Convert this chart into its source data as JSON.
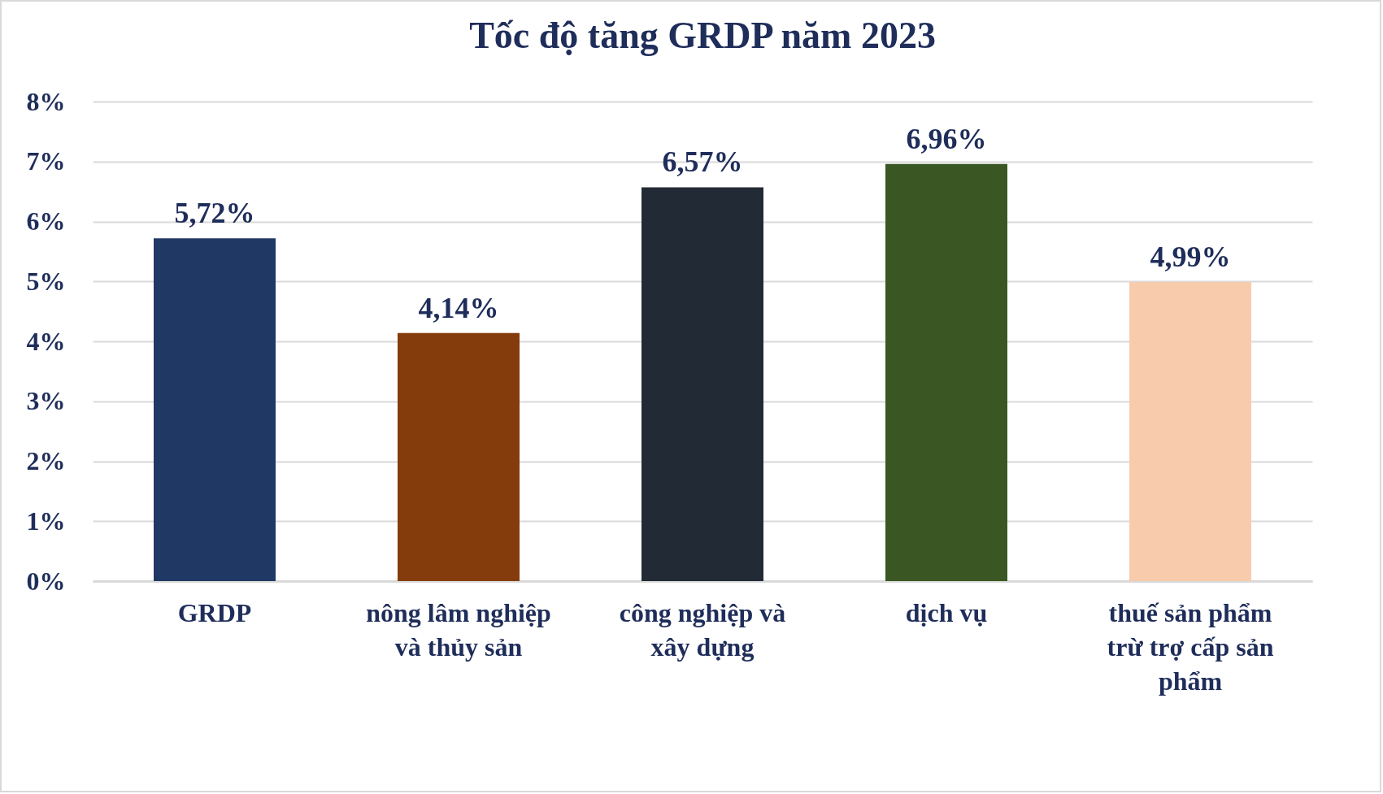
{
  "chart_data": {
    "type": "bar",
    "title": "Tốc độ tăng GRDP năm 2023",
    "categories": [
      "GRDP",
      "nông lâm nghiệp và thủy sản",
      "công nghiệp và xây dựng",
      "dịch vụ",
      "thuế sản phẩm trừ trợ cấp sản phẩm"
    ],
    "values": [
      5.72,
      4.14,
      6.57,
      6.96,
      4.99
    ],
    "colors": [
      "#203864",
      "#843c0c",
      "#222a35",
      "#3a5723",
      "#f8cbad"
    ],
    "value_labels": [
      "5,72%",
      "4,14%",
      "6,57%",
      "6,96%",
      "4,99%"
    ],
    "ylim": [
      0,
      8
    ],
    "yticks": [
      {
        "value": 0,
        "label": "0%"
      },
      {
        "value": 1,
        "label": "1%"
      },
      {
        "value": 2,
        "label": "2%"
      },
      {
        "value": 3,
        "label": "3%"
      },
      {
        "value": 4,
        "label": "4%"
      },
      {
        "value": 5,
        "label": "5%"
      },
      {
        "value": 6,
        "label": "6%"
      },
      {
        "value": 7,
        "label": "7%"
      },
      {
        "value": 8,
        "label": "8%"
      }
    ],
    "grid": "y"
  }
}
